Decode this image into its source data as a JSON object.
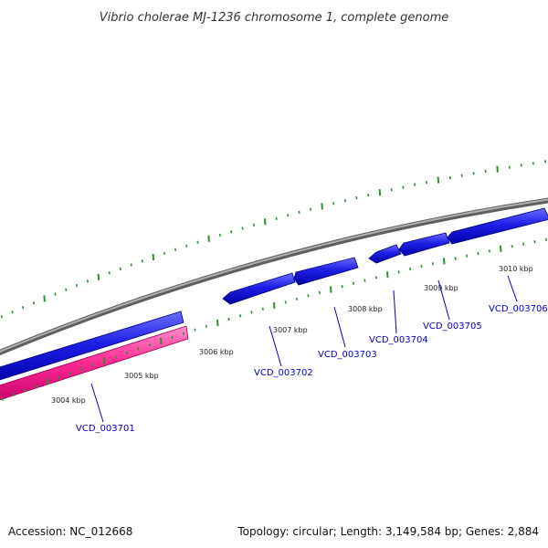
{
  "title": "Vibrio cholerae MJ-1236 chromosome 1, complete genome",
  "footer": {
    "accession": "Accession: NC_012668",
    "summary": "Topology: circular; Length: 3,149,584 bp; Genes: 2,884"
  },
  "colors": {
    "backbone": "#8a8a8a",
    "cds_forward": "#1f1fe6",
    "cds_reverse": "#ff3399",
    "ticks": "#2f8f2f",
    "gene_label": "#0000cc",
    "leader_line": "#0000cc"
  },
  "kbp_labels": [
    "3004 kbp",
    "3005 kbp",
    "3006 kbp",
    "3007 kbp",
    "3008 kbp",
    "3009 kbp",
    "3010 kbp"
  ],
  "gene_labels": [
    "VCD_003701",
    "VCD_003702",
    "VCD_003703",
    "VCD_003704",
    "VCD_003705",
    "VCD_003706"
  ]
}
